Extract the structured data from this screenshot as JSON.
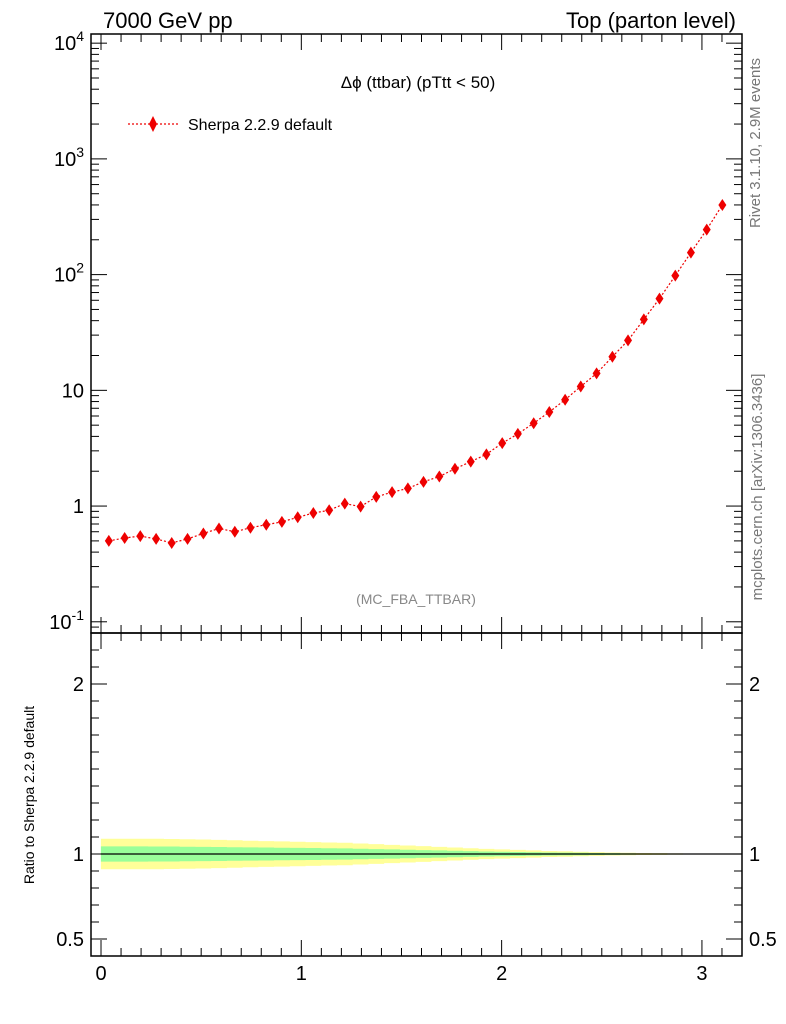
{
  "header": {
    "left": "7000 GeV pp",
    "right": "Top (parton level)"
  },
  "side_labels": {
    "rivet": "Rivet 3.1.10,  2.9M events",
    "mcplots": "mcplots.cern.ch [arXiv:1306.3436]"
  },
  "colors": {
    "series": "#ee0000",
    "band_outer": "#ffff99",
    "band_inner": "#99ff99"
  },
  "chart_data": [
    {
      "type": "scatter",
      "title": "Δϕ (ttbar) (pTtt < 50)",
      "annotation": "(MC_FBA_TTBAR)",
      "xlabel": "",
      "ylabel": "",
      "yscale": "log",
      "ylim": [
        0.08,
        12000
      ],
      "xlim": [
        -0.05,
        3.2
      ],
      "legend": "top-left",
      "y_tick_labels": [
        "10^-1",
        "1",
        "10",
        "10^2",
        "10^3",
        "10^4"
      ],
      "x": [
        0.039,
        0.118,
        0.196,
        0.275,
        0.353,
        0.432,
        0.511,
        0.589,
        0.668,
        0.746,
        0.825,
        0.903,
        0.982,
        1.06,
        1.139,
        1.217,
        1.296,
        1.374,
        1.453,
        1.532,
        1.61,
        1.689,
        1.767,
        1.846,
        1.924,
        2.003,
        2.081,
        2.16,
        2.238,
        2.317,
        2.395,
        2.474,
        2.553,
        2.631,
        2.71,
        2.788,
        2.867,
        2.945,
        3.024,
        3.102
      ],
      "series": [
        {
          "name": "Sherpa 2.2.9 default",
          "values": [
            0.5,
            0.53,
            0.55,
            0.52,
            0.48,
            0.52,
            0.58,
            0.64,
            0.6,
            0.65,
            0.69,
            0.73,
            0.8,
            0.87,
            0.92,
            1.05,
            0.99,
            1.2,
            1.32,
            1.42,
            1.62,
            1.8,
            2.1,
            2.42,
            2.8,
            3.5,
            4.2,
            5.2,
            6.5,
            8.3,
            10.8,
            14.0,
            19.5,
            27.0,
            41.0,
            62.0,
            98.0,
            155.0,
            245.0,
            400.0
          ]
        }
      ]
    },
    {
      "type": "area",
      "ylabel": "Ratio to Sherpa 2.2.9 default",
      "xlim": [
        -0.05,
        3.2
      ],
      "ylim": [
        0.4,
        2.3
      ],
      "x_tick_labels": [
        "0",
        "1",
        "2",
        "3"
      ],
      "y_tick_labels": [
        "0.5",
        "1",
        "2"
      ],
      "reference": 1.0,
      "band_outer_halfwidth": [
        0.09,
        0.09,
        0.09,
        0.09,
        0.088,
        0.087,
        0.085,
        0.083,
        0.081,
        0.078,
        0.076,
        0.074,
        0.072,
        0.07,
        0.068,
        0.066,
        0.062,
        0.058,
        0.054,
        0.05,
        0.046,
        0.042,
        0.038,
        0.034,
        0.03,
        0.027,
        0.024,
        0.021,
        0.018,
        0.016,
        0.013,
        0.011,
        0.009,
        0.007,
        0.006,
        0.005,
        0.004,
        0.003,
        0.002,
        0.002
      ],
      "band_inner_halfwidth": [
        0.045,
        0.045,
        0.045,
        0.044,
        0.044,
        0.043,
        0.042,
        0.041,
        0.04,
        0.039,
        0.038,
        0.037,
        0.036,
        0.035,
        0.034,
        0.033,
        0.031,
        0.029,
        0.027,
        0.025,
        0.023,
        0.021,
        0.019,
        0.017,
        0.015,
        0.013,
        0.012,
        0.01,
        0.009,
        0.008,
        0.007,
        0.006,
        0.005,
        0.004,
        0.003,
        0.003,
        0.002,
        0.002,
        0.001,
        0.001
      ]
    }
  ]
}
